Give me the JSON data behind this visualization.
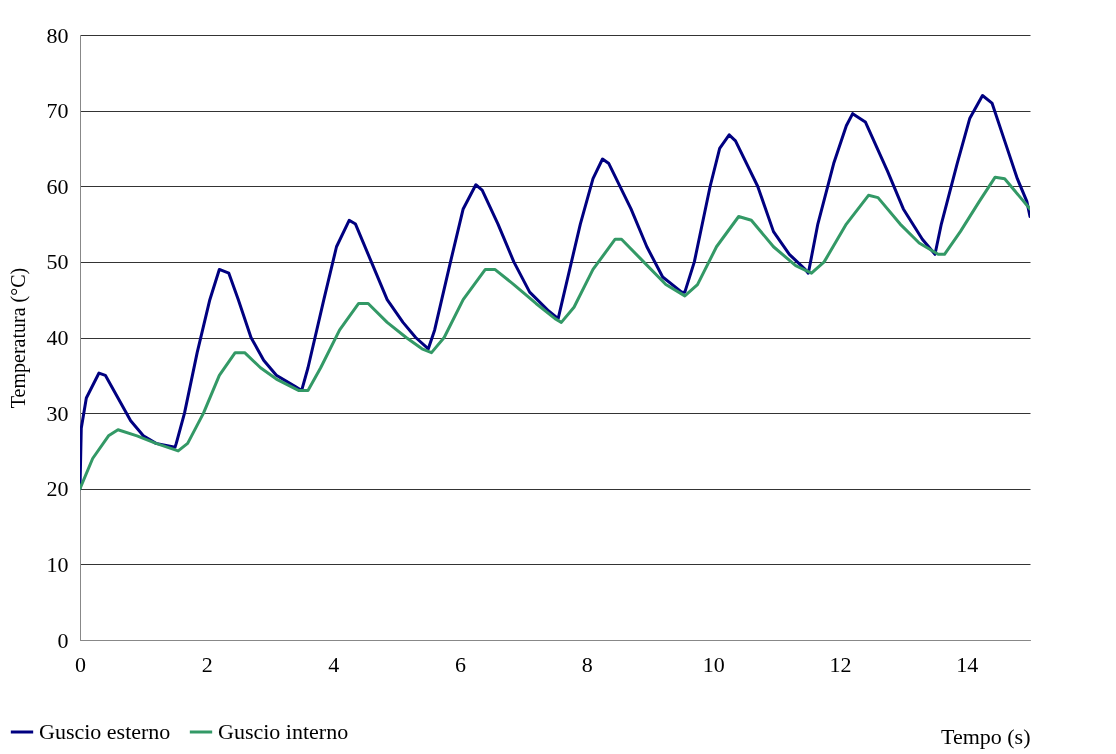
{
  "chart_data": {
    "type": "line",
    "xlabel": "Tempo (s)",
    "ylabel": "Temperatura (°C)",
    "xlim": [
      0,
      15
    ],
    "xticks": [
      0,
      2,
      4,
      6,
      8,
      10,
      12,
      14
    ],
    "ylim": [
      0,
      80
    ],
    "yticks": [
      0,
      10,
      20,
      30,
      40,
      50,
      60,
      70,
      80
    ],
    "grid": "y",
    "legend": "bottom left",
    "line_style": "solid",
    "marker": "none",
    "series": [
      {
        "name": "Guscio esterno",
        "color": "#000080",
        "x": [
          0,
          0.02,
          0.1,
          0.3,
          0.4,
          0.6,
          0.8,
          1.0,
          1.2,
          1.5,
          1.52,
          1.65,
          1.85,
          2.05,
          2.2,
          2.35,
          2.5,
          2.7,
          2.9,
          3.1,
          3.4,
          3.5,
          3.6,
          3.85,
          4.05,
          4.25,
          4.35,
          4.6,
          4.85,
          5.1,
          5.3,
          5.5,
          5.6,
          5.85,
          6.05,
          6.25,
          6.35,
          6.6,
          6.85,
          7.1,
          7.4,
          7.55,
          7.62,
          7.9,
          8.1,
          8.25,
          8.35,
          8.7,
          8.95,
          9.2,
          9.5,
          9.55,
          9.7,
          9.95,
          10.1,
          10.25,
          10.35,
          10.7,
          10.95,
          11.2,
          11.45,
          11.5,
          11.65,
          11.9,
          12.1,
          12.2,
          12.4,
          12.75,
          13.0,
          13.3,
          13.5,
          13.6,
          13.85,
          14.05,
          14.25,
          14.4,
          14.6,
          14.8,
          14.95,
          15
        ],
        "values": [
          20,
          28,
          32,
          35.3,
          35,
          32,
          29,
          27,
          26,
          25.5,
          26,
          30,
          38,
          45,
          49,
          48.5,
          45,
          40,
          37,
          35,
          33.5,
          33,
          36,
          45,
          52,
          55.5,
          55,
          50,
          45,
          42,
          40,
          38.5,
          41,
          50,
          57,
          60.2,
          59.5,
          55,
          50,
          46,
          43.5,
          42.5,
          45,
          55,
          61,
          63.6,
          63,
          57,
          52,
          48,
          46,
          46,
          50,
          60,
          65,
          66.8,
          66,
          60,
          54,
          51,
          49,
          48.5,
          55,
          63,
          68,
          69.6,
          68.5,
          62,
          57,
          53,
          51,
          55,
          63,
          69,
          72,
          71,
          66,
          61,
          58,
          56
        ]
      },
      {
        "name": "Guscio interno",
        "color": "#339966",
        "x": [
          0,
          0.2,
          0.45,
          0.6,
          0.9,
          1.2,
          1.55,
          1.7,
          1.95,
          2.2,
          2.45,
          2.6,
          2.85,
          3.1,
          3.45,
          3.6,
          3.8,
          4.1,
          4.4,
          4.55,
          4.85,
          5.15,
          5.4,
          5.55,
          5.75,
          6.05,
          6.4,
          6.55,
          6.85,
          7.2,
          7.5,
          7.6,
          7.8,
          8.1,
          8.45,
          8.55,
          8.9,
          9.25,
          9.55,
          9.75,
          10.05,
          10.4,
          10.6,
          10.95,
          11.3,
          11.55,
          11.75,
          12.1,
          12.45,
          12.6,
          12.95,
          13.25,
          13.55,
          13.65,
          13.9,
          14.2,
          14.45,
          14.6,
          14.85,
          15
        ],
        "values": [
          20,
          24,
          27,
          27.8,
          27,
          26,
          25,
          26,
          30,
          35,
          38,
          38,
          36,
          34.5,
          33,
          33,
          36,
          41,
          44.5,
          44.5,
          42,
          40,
          38.5,
          38,
          40,
          45,
          49,
          49,
          47,
          44.5,
          42.5,
          42,
          44,
          49,
          53,
          53,
          50,
          47,
          45.5,
          47,
          52,
          56,
          55.5,
          52,
          49.5,
          48.5,
          50,
          55,
          58.8,
          58.5,
          55,
          52.5,
          51,
          51,
          54,
          58,
          61.2,
          61,
          58.5,
          57
        ]
      }
    ]
  }
}
